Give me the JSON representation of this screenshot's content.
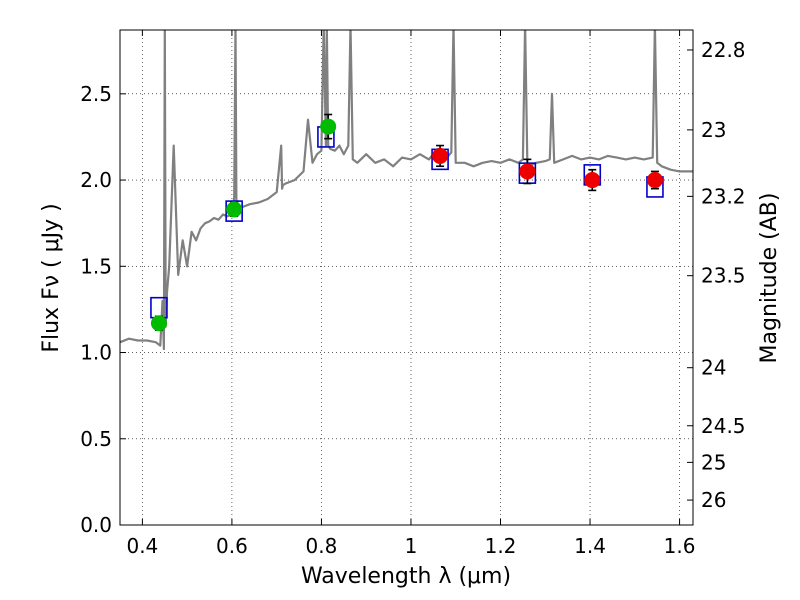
{
  "chart_data": {
    "type": "scatter",
    "title": "",
    "xlabel": "Wavelength  λ (μm)",
    "ylabel": "Flux  Fν  ( μJy )",
    "y2label": "Magnitude (AB)",
    "xlim": [
      0.35,
      1.63
    ],
    "ylim": [
      0.0,
      2.87
    ],
    "grid": true,
    "grid_style": "dotted",
    "x_ticks": [
      0.4,
      0.6,
      0.8,
      1.0,
      1.2,
      1.4,
      1.6
    ],
    "x_tick_labels": [
      "0.4",
      "0.6",
      "0.8",
      "1",
      "1.2",
      "1.4",
      "1.6"
    ],
    "y_ticks": [
      0.0,
      0.5,
      1.0,
      1.5,
      2.0,
      2.5
    ],
    "y_tick_labels": [
      "0.0",
      "0.5",
      "1.0",
      "1.5",
      "2.0",
      "2.5"
    ],
    "y2_ticks": [
      22.8,
      23,
      23.2,
      23.5,
      24,
      24.5,
      25,
      26
    ],
    "y2_tick_labels": [
      "22.8",
      "23",
      "23.2",
      "23.5",
      "24",
      "24.5",
      "25",
      "26"
    ],
    "series": [
      {
        "kind": "line",
        "color": "#808080",
        "x": [
          0.35,
          0.37,
          0.39,
          0.41,
          0.43,
          0.44,
          0.445,
          0.448,
          0.45,
          0.452,
          0.455,
          0.46,
          0.47,
          0.48,
          0.49,
          0.5,
          0.51,
          0.52,
          0.53,
          0.54,
          0.55,
          0.56,
          0.57,
          0.58,
          0.59,
          0.6,
          0.605,
          0.608,
          0.61,
          0.615,
          0.62,
          0.64,
          0.66,
          0.68,
          0.7,
          0.71,
          0.712,
          0.714,
          0.72,
          0.74,
          0.76,
          0.77,
          0.78,
          0.79,
          0.8,
          0.805,
          0.81,
          0.812,
          0.815,
          0.82,
          0.83,
          0.84,
          0.85,
          0.86,
          0.865,
          0.87,
          0.88,
          0.9,
          0.92,
          0.94,
          0.96,
          0.98,
          1.0,
          1.02,
          1.04,
          1.06,
          1.08,
          1.09,
          1.095,
          1.1,
          1.12,
          1.14,
          1.16,
          1.18,
          1.2,
          1.22,
          1.24,
          1.25,
          1.255,
          1.26,
          1.28,
          1.3,
          1.31,
          1.315,
          1.32,
          1.34,
          1.36,
          1.38,
          1.4,
          1.42,
          1.44,
          1.46,
          1.48,
          1.5,
          1.52,
          1.54,
          1.545,
          1.55,
          1.56,
          1.58,
          1.6,
          1.63
        ],
        "y": [
          1.06,
          1.08,
          1.07,
          1.07,
          1.06,
          1.04,
          1.3,
          1.02,
          2.9,
          1.15,
          1.35,
          1.5,
          2.2,
          1.45,
          1.65,
          1.5,
          1.7,
          1.65,
          1.72,
          1.75,
          1.76,
          1.78,
          1.77,
          1.8,
          1.79,
          1.8,
          1.9,
          2.9,
          1.85,
          1.82,
          1.84,
          1.86,
          1.87,
          1.89,
          1.93,
          2.2,
          1.95,
          1.97,
          1.98,
          2.0,
          2.05,
          2.35,
          2.1,
          2.15,
          2.17,
          2.9,
          2.2,
          2.9,
          2.2,
          2.18,
          2.17,
          2.2,
          2.15,
          2.2,
          2.9,
          2.12,
          2.1,
          2.15,
          2.1,
          2.12,
          2.08,
          2.13,
          2.12,
          2.15,
          2.12,
          2.18,
          2.13,
          2.16,
          2.9,
          2.1,
          2.1,
          2.08,
          2.1,
          2.11,
          2.1,
          2.12,
          2.1,
          2.12,
          2.9,
          2.08,
          2.1,
          2.11,
          2.12,
          2.5,
          2.1,
          2.12,
          2.14,
          2.12,
          2.13,
          2.12,
          2.14,
          2.13,
          2.12,
          2.13,
          2.12,
          2.13,
          2.9,
          2.1,
          2.08,
          2.06,
          2.05,
          2.05
        ]
      },
      {
        "kind": "markers",
        "marker": "square-open",
        "color": "#0000cc",
        "x": [
          0.437,
          0.605,
          0.81,
          1.065,
          1.26,
          1.405,
          1.545
        ],
        "y": [
          1.26,
          1.82,
          2.25,
          2.12,
          2.04,
          2.03,
          1.96
        ]
      },
      {
        "kind": "markers",
        "marker": "circle",
        "color": "#00bb00",
        "errorbars": true,
        "x": [
          0.437,
          0.605,
          0.815
        ],
        "y": [
          1.17,
          1.83,
          2.31
        ],
        "yerr": [
          0.04,
          0.04,
          0.07
        ]
      },
      {
        "kind": "markers",
        "marker": "circle",
        "color": "#ee0000",
        "errorbars": true,
        "x": [
          1.065,
          1.26,
          1.405,
          1.545
        ],
        "y": [
          2.14,
          2.05,
          2.0,
          2.0
        ],
        "yerr": [
          0.06,
          0.07,
          0.06,
          0.05
        ]
      }
    ]
  }
}
